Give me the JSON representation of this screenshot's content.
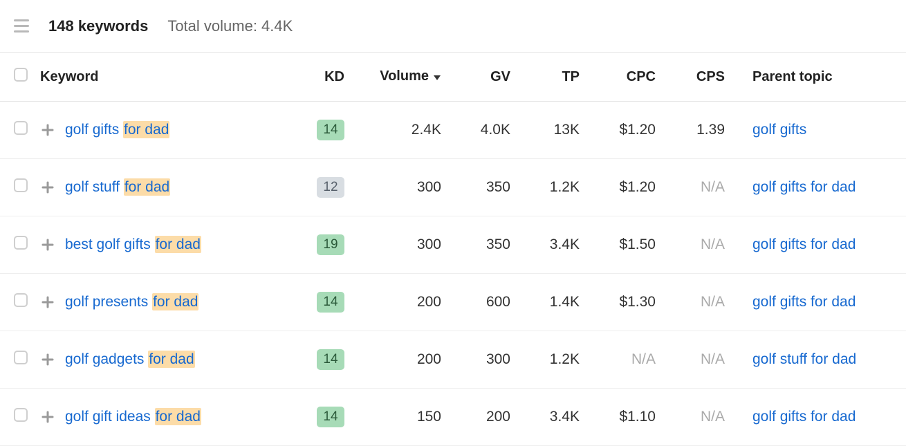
{
  "header": {
    "keyword_count_label": "148 keywords",
    "total_volume_label": "Total volume: 4.4K"
  },
  "columns": {
    "keyword": "Keyword",
    "kd": "KD",
    "volume": "Volume",
    "gv": "GV",
    "tp": "TP",
    "cpc": "CPC",
    "cps": "CPS",
    "parent": "Parent topic"
  },
  "sort": {
    "column": "volume",
    "direction": "desc"
  },
  "na_label": "N/A",
  "kd_styles": {
    "green": {
      "bg": "#a7dbb7",
      "fg": "#2b5a3a"
    },
    "gray": {
      "bg": "#d8dde2",
      "fg": "#565f6a"
    }
  },
  "colors": {
    "link": "#1769d0",
    "highlight_bg": "#fcdca8",
    "na_text": "#aaaaaa",
    "border": "#e5e5e5"
  },
  "rows": [
    {
      "keyword_prefix": "golf gifts ",
      "keyword_highlight": "for dad",
      "kd": "14",
      "kd_style": "green",
      "volume": "2.4K",
      "gv": "4.0K",
      "tp": "13K",
      "cpc": "$1.20",
      "cps": "1.39",
      "parent": "golf gifts"
    },
    {
      "keyword_prefix": "golf stuff ",
      "keyword_highlight": "for dad",
      "kd": "12",
      "kd_style": "gray",
      "volume": "300",
      "gv": "350",
      "tp": "1.2K",
      "cpc": "$1.20",
      "cps": "N/A",
      "parent": "golf gifts for dad"
    },
    {
      "keyword_prefix": "best golf gifts ",
      "keyword_highlight": "for dad",
      "kd": "19",
      "kd_style": "green",
      "volume": "300",
      "gv": "350",
      "tp": "3.4K",
      "cpc": "$1.50",
      "cps": "N/A",
      "parent": "golf gifts for dad"
    },
    {
      "keyword_prefix": "golf presents ",
      "keyword_highlight": "for dad",
      "kd": "14",
      "kd_style": "green",
      "volume": "200",
      "gv": "600",
      "tp": "1.4K",
      "cpc": "$1.30",
      "cps": "N/A",
      "parent": "golf gifts for dad"
    },
    {
      "keyword_prefix": "golf gadgets ",
      "keyword_highlight": "for dad",
      "kd": "14",
      "kd_style": "green",
      "volume": "200",
      "gv": "300",
      "tp": "1.2K",
      "cpc": "N/A",
      "cps": "N/A",
      "parent": "golf stuff for dad"
    },
    {
      "keyword_prefix": "golf gift ideas ",
      "keyword_highlight": "for dad",
      "kd": "14",
      "kd_style": "green",
      "volume": "150",
      "gv": "200",
      "tp": "3.4K",
      "cpc": "$1.10",
      "cps": "N/A",
      "parent": "golf gifts for dad"
    }
  ]
}
